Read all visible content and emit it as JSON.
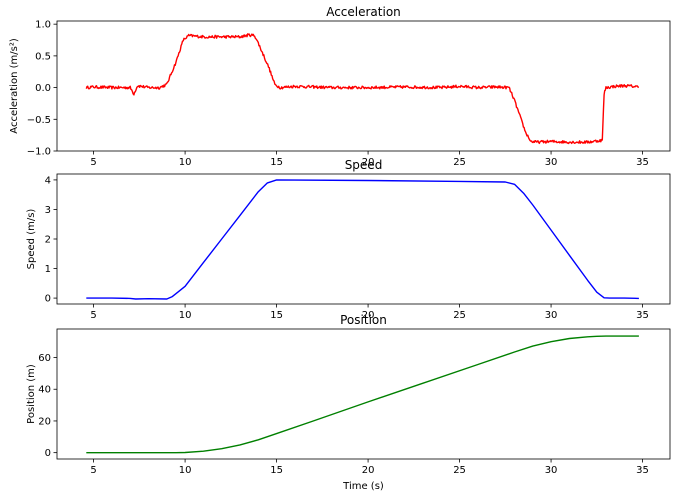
{
  "chart_data": [
    {
      "type": "line",
      "title": "Acceleration",
      "xlabel": "",
      "ylabel": "Acceleration (m/s²)",
      "xlim": [
        3.0,
        36.5
      ],
      "ylim": [
        -1.0,
        1.05
      ],
      "xticks": [
        5,
        10,
        15,
        20,
        25,
        30,
        35
      ],
      "xtick_labels": [
        "5",
        "10",
        "15",
        "20",
        "25",
        "30",
        "35"
      ],
      "yticks": [
        -1.0,
        -0.5,
        0.0,
        0.5,
        1.0
      ],
      "ytick_labels": [
        "−1.0",
        "−0.5",
        "0.0",
        "0.5",
        "1.0"
      ],
      "grid": false,
      "series": [
        {
          "color": "#ff0000",
          "x": [
            4.6,
            5.0,
            6.0,
            7.0,
            7.2,
            7.4,
            8.0,
            8.6,
            9.0,
            9.5,
            9.9,
            10.2,
            11.0,
            12.0,
            13.0,
            13.5,
            13.8,
            14.0,
            14.3,
            14.6,
            14.9,
            15.2,
            16.0,
            18.0,
            20.0,
            22.0,
            24.0,
            25.0,
            26.0,
            27.0,
            27.7,
            28.0,
            28.3,
            28.6,
            28.9,
            29.2,
            30.0,
            31.0,
            32.0,
            32.8,
            32.9,
            33.0,
            33.5,
            34.0,
            34.5,
            34.8
          ],
          "y": [
            0.0,
            0.01,
            0.0,
            0.0,
            -0.1,
            0.03,
            0.0,
            0.0,
            0.05,
            0.4,
            0.75,
            0.82,
            0.8,
            0.8,
            0.8,
            0.83,
            0.82,
            0.7,
            0.5,
            0.3,
            0.05,
            0.0,
            0.02,
            0.0,
            0.0,
            0.01,
            0.0,
            0.02,
            0.0,
            0.01,
            0.0,
            -0.2,
            -0.45,
            -0.7,
            -0.85,
            -0.86,
            -0.85,
            -0.86,
            -0.86,
            -0.83,
            -0.1,
            0.0,
            0.02,
            0.03,
            0.02,
            0.01
          ]
        }
      ]
    },
    {
      "type": "line",
      "title": "Speed",
      "xlabel": "",
      "ylabel": "Speed (m/s)",
      "xlim": [
        3.0,
        36.5
      ],
      "ylim": [
        -0.2,
        4.2
      ],
      "xticks": [
        5,
        10,
        15,
        20,
        25,
        30,
        35
      ],
      "xtick_labels": [
        "5",
        "10",
        "15",
        "20",
        "25",
        "30",
        "35"
      ],
      "yticks": [
        0,
        1,
        2,
        3,
        4
      ],
      "ytick_labels": [
        "0",
        "1",
        "2",
        "3",
        "4"
      ],
      "grid": false,
      "series": [
        {
          "color": "#0000ff",
          "x": [
            4.6,
            6.0,
            7.0,
            7.3,
            8.0,
            9.0,
            9.3,
            9.6,
            10.0,
            11.0,
            12.0,
            13.0,
            14.0,
            14.5,
            15.0,
            20.0,
            25.0,
            27.5,
            28.0,
            28.5,
            29.0,
            30.0,
            31.0,
            32.0,
            32.5,
            32.9,
            33.2,
            34.0,
            34.8
          ],
          "y": [
            0.0,
            0.0,
            -0.01,
            -0.03,
            -0.02,
            -0.03,
            0.05,
            0.2,
            0.4,
            1.2,
            2.0,
            2.8,
            3.6,
            3.9,
            4.0,
            3.98,
            3.95,
            3.93,
            3.85,
            3.55,
            3.15,
            2.3,
            1.45,
            0.6,
            0.2,
            0.01,
            0.0,
            0.0,
            -0.01
          ]
        }
      ]
    },
    {
      "type": "line",
      "title": "Position",
      "xlabel": "Time (s)",
      "ylabel": "Position (m)",
      "xlim": [
        3.0,
        36.5
      ],
      "ylim": [
        -4,
        78
      ],
      "xticks": [
        5,
        10,
        15,
        20,
        25,
        30,
        35
      ],
      "xtick_labels": [
        "5",
        "10",
        "15",
        "20",
        "25",
        "30",
        "35"
      ],
      "yticks": [
        0,
        20,
        40,
        60
      ],
      "ytick_labels": [
        "0",
        "20",
        "40",
        "60"
      ],
      "grid": false,
      "series": [
        {
          "color": "#008000",
          "x": [
            4.6,
            9.5,
            10.0,
            11.0,
            12.0,
            13.0,
            14.0,
            15.0,
            17.0,
            20.0,
            23.0,
            26.0,
            28.0,
            29.0,
            30.0,
            31.0,
            32.0,
            32.5,
            33.0,
            34.0,
            34.8
          ],
          "y": [
            0.0,
            0.0,
            0.1,
            0.9,
            2.5,
            4.9,
            8.1,
            12.0,
            20.0,
            32.0,
            43.8,
            55.6,
            63.5,
            67.2,
            70.0,
            72.0,
            73.1,
            73.4,
            73.5,
            73.5,
            73.5
          ]
        }
      ]
    }
  ]
}
